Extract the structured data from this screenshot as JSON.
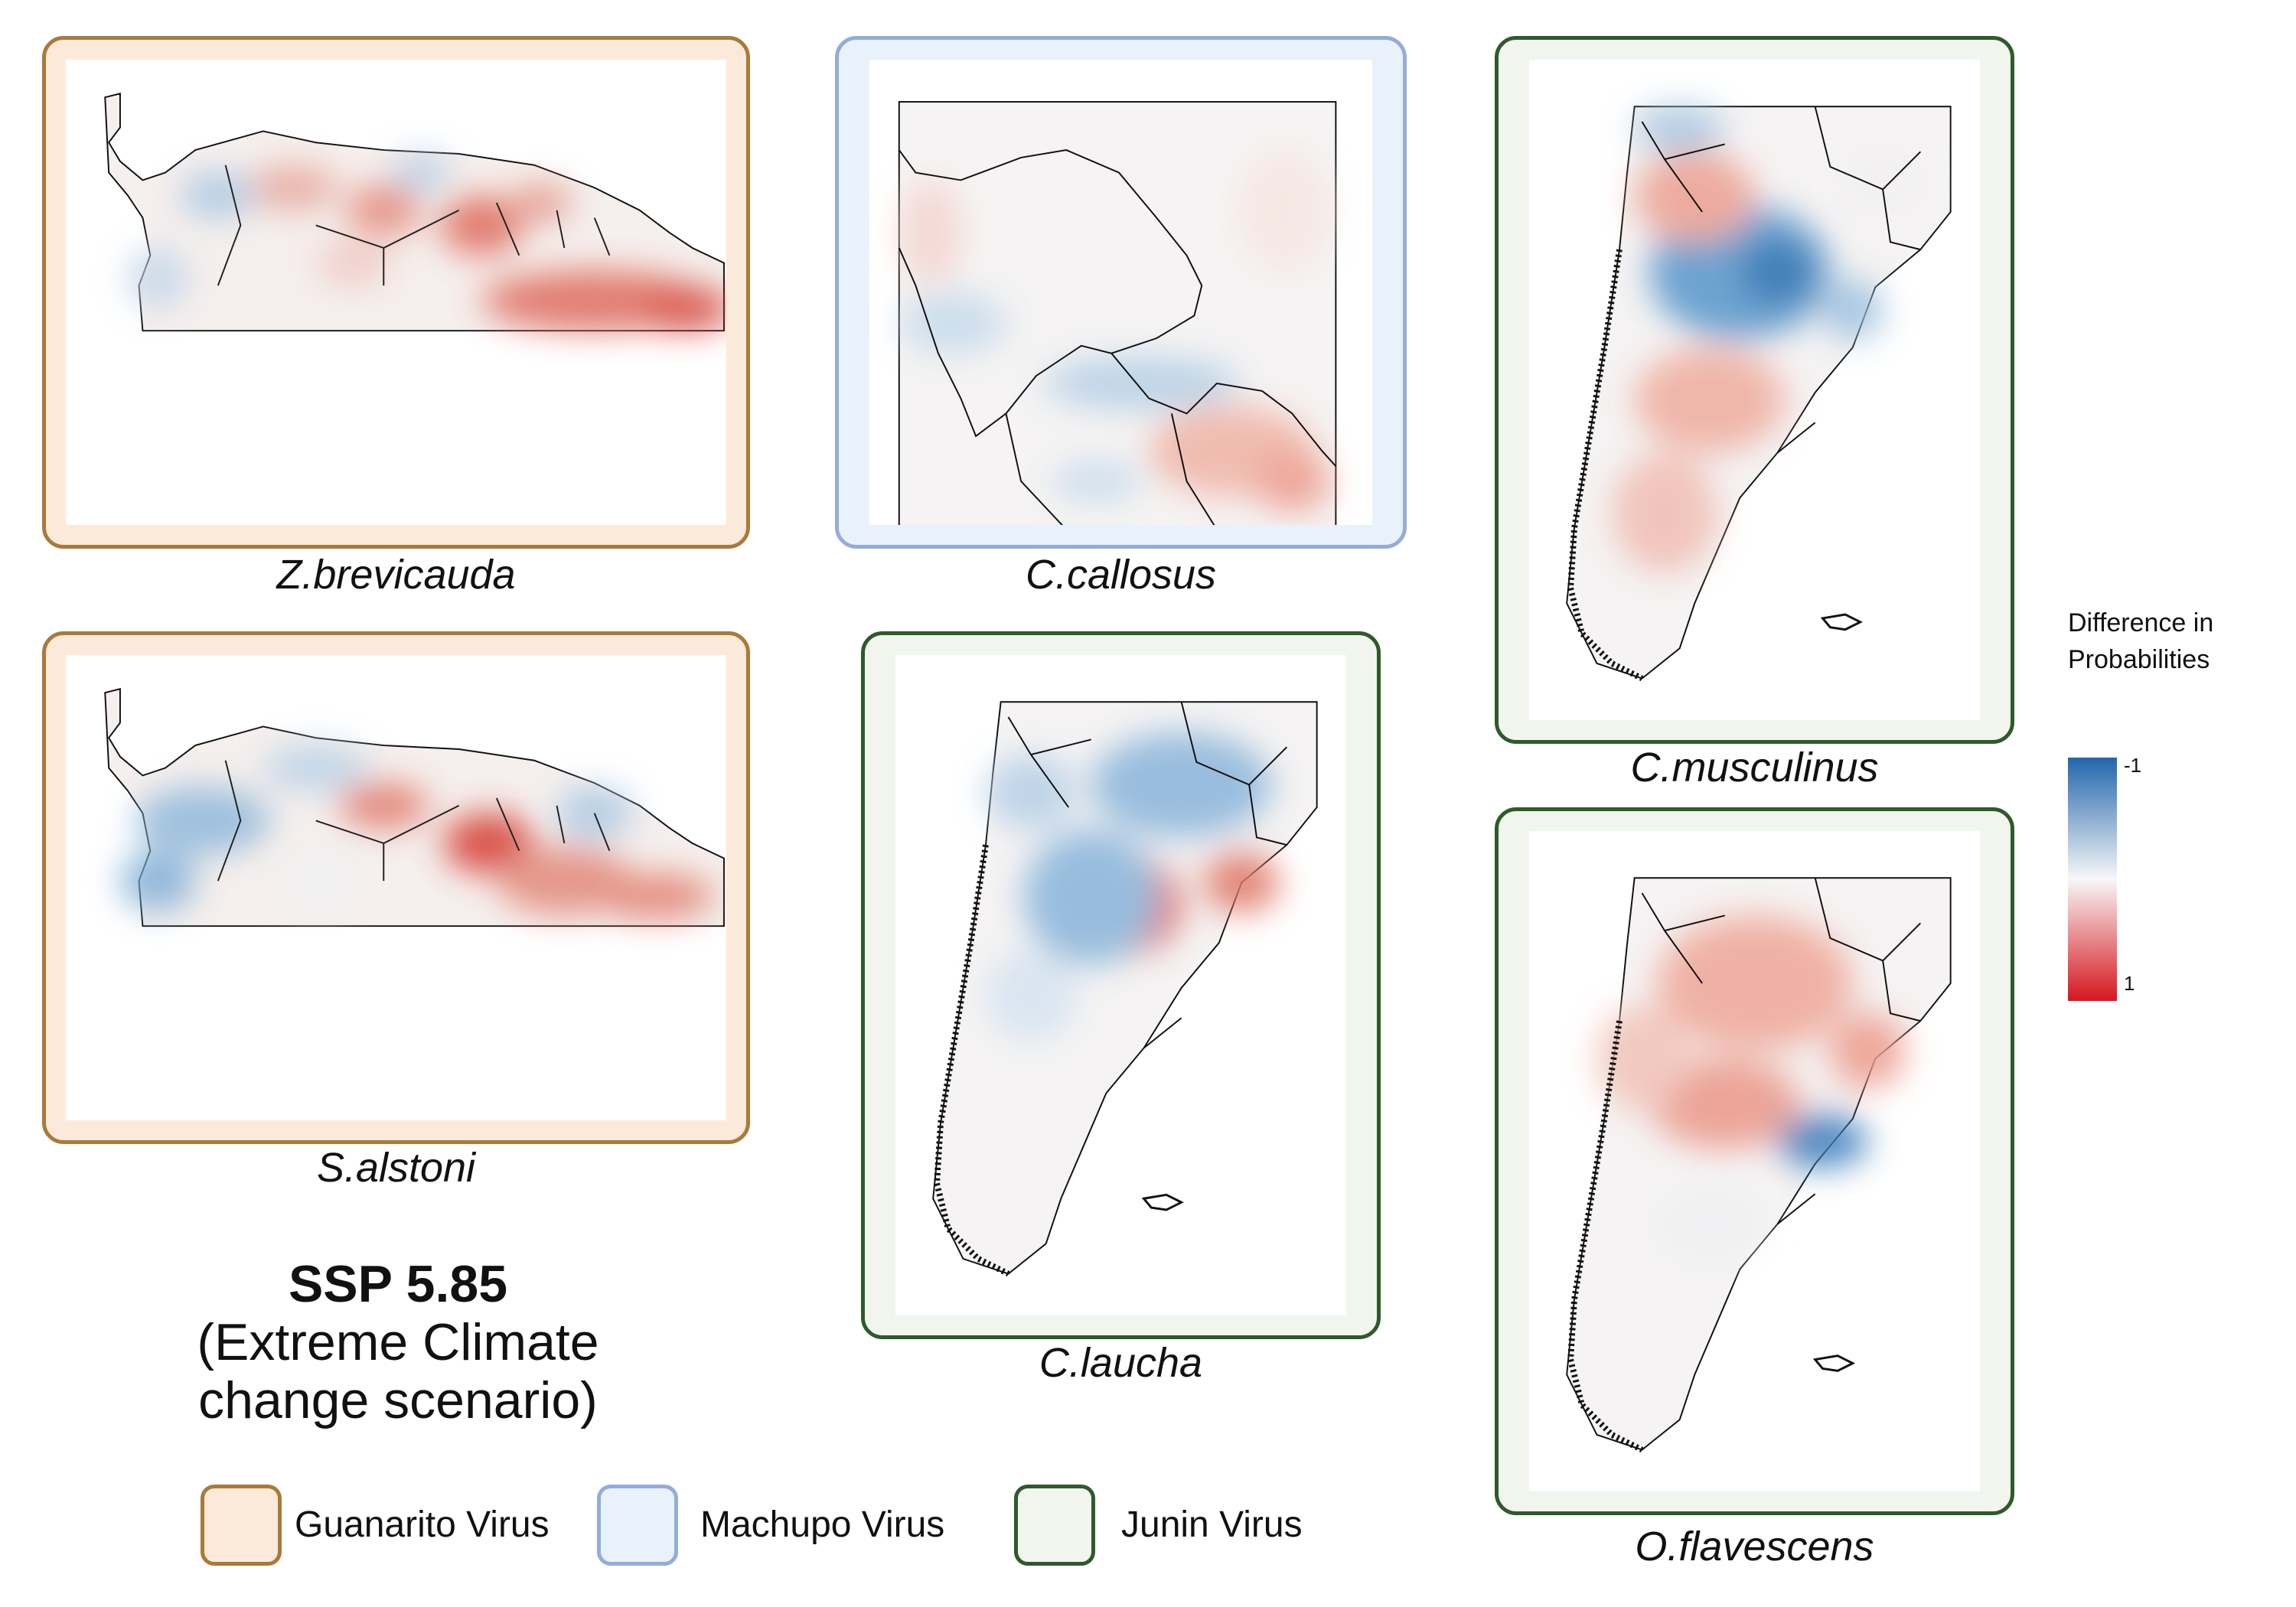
{
  "colors": {
    "guanarito_border": "#a97a3a",
    "guanarito_fill": "#fbeada",
    "machupo_border": "#94acd8",
    "machupo_fill": "#e9f1fb",
    "junin_border": "#2f5a2c",
    "junin_fill": "#f1f5ee",
    "scale_low": "#2166ac",
    "scale_mid": "#f7f7f7",
    "scale_high": "#d6161f"
  },
  "panels": {
    "z_brevicauda": {
      "caption": "Z.brevicauda",
      "virus": "guanarito",
      "region": "northern-south-america"
    },
    "c_callosus": {
      "caption": "C.callosus",
      "virus": "machupo",
      "region": "bolivia"
    },
    "c_musculinus": {
      "caption": "C.musculinus",
      "virus": "junin",
      "region": "southern-cone"
    },
    "s_alstoni": {
      "caption": "S.alstoni",
      "virus": "guanarito",
      "region": "northern-south-america"
    },
    "c_laucha": {
      "caption": "C.laucha",
      "virus": "junin",
      "region": "southern-cone"
    },
    "o_flavescens": {
      "caption": "O.flavescens",
      "virus": "junin",
      "region": "southern-cone"
    }
  },
  "scenario": {
    "title": "SSP 5.85",
    "subtitle_line1": "(Extreme Climate",
    "subtitle_line2": "change scenario)"
  },
  "legend": {
    "guanarito": "Guanarito Virus",
    "machupo": "Machupo Virus",
    "junin": "Junin Virus"
  },
  "colorbar": {
    "title_line1": "Difference in",
    "title_line2": "Probabilities",
    "min_label": "-1",
    "max_label": "1",
    "min": -1,
    "max": 1
  }
}
